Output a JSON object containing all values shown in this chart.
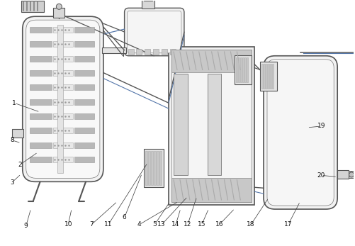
{
  "lc": "#555555",
  "lc2": "#777777",
  "blue": "#5577aa",
  "fill_light": "#f0f0f0",
  "fill_med": "#e0e0e0",
  "fill_dark": "#cccccc",
  "fill_stripe": "#b0b0b0",
  "white": "#ffffff",
  "gray_dark": "#888888"
}
